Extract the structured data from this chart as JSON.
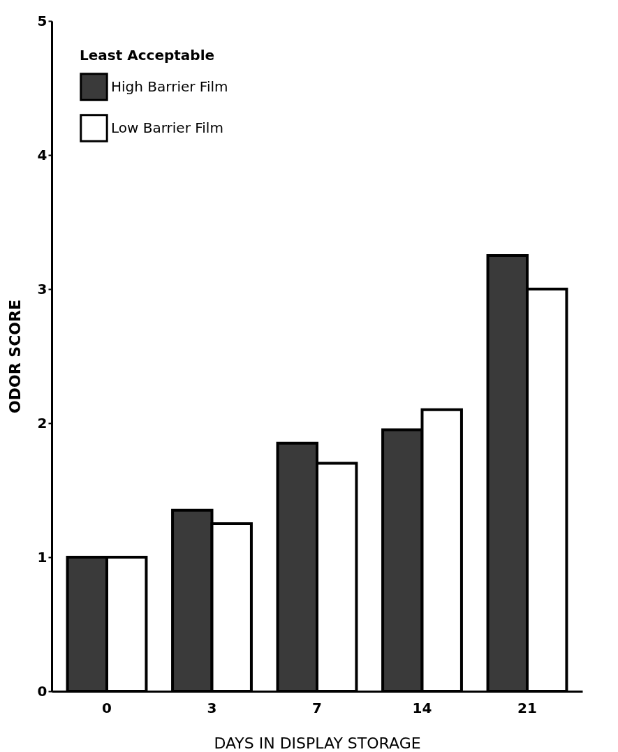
{
  "chart_data": {
    "type": "bar",
    "xlabel": "DAYS IN DISPLAY STORAGE",
    "ylabel": "ODOR SCORE",
    "legend_title": "Least Acceptable",
    "categories": [
      "0",
      "3",
      "7",
      "14",
      "21"
    ],
    "series": [
      {
        "name": "High Barrier Film",
        "color": "#3a3a3a",
        "values": [
          1.0,
          1.35,
          1.85,
          1.95,
          3.25
        ]
      },
      {
        "name": "Low Barrier Film",
        "color": "#ffffff",
        "values": [
          1.0,
          1.25,
          1.7,
          2.1,
          3.0
        ]
      }
    ],
    "ylim": [
      0,
      5
    ],
    "yticks": [
      0,
      1,
      2,
      3,
      4,
      5
    ],
    "grid": false,
    "legend": "top left"
  }
}
